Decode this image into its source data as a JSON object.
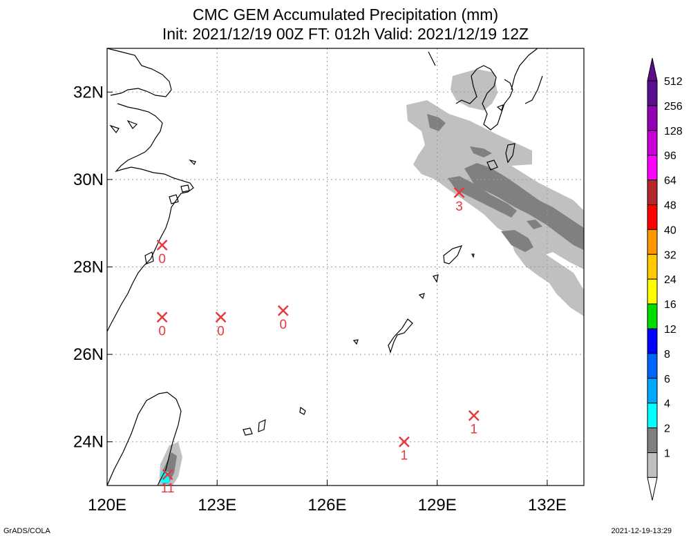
{
  "title": {
    "line1": "CMC GEM Accumulated Precipitation (mm)",
    "line2": "Init: 2021/12/19 00Z  FT: 012h  Valid: 2021/12/19 12Z"
  },
  "axes": {
    "lon_ticks": [
      "120E",
      "123E",
      "126E",
      "129E",
      "132E"
    ],
    "lat_ticks": [
      "32N",
      "30N",
      "28N",
      "26N",
      "24N"
    ],
    "lon_range": [
      120,
      133
    ],
    "lat_range": [
      23,
      33
    ],
    "grid": "dotted"
  },
  "colorbar": {
    "labels": [
      "512",
      "256",
      "128",
      "96",
      "64",
      "48",
      "40",
      "32",
      "24",
      "16",
      "12",
      "8",
      "6",
      "4",
      "2",
      "1"
    ],
    "colors": [
      "#5c0f8c",
      "#9400b4",
      "#c800d2",
      "#ff00ff",
      "#b4282d",
      "#ff0000",
      "#ff9600",
      "#ffc800",
      "#ffff00",
      "#00dc00",
      "#0000ff",
      "#0064ff",
      "#00aaff",
      "#00ffff",
      "#808080",
      "#c0c0c0"
    ]
  },
  "stations": [
    {
      "lon": 121.5,
      "lat": 28.5,
      "value": "0"
    },
    {
      "lon": 121.5,
      "lat": 26.85,
      "value": "0"
    },
    {
      "lon": 123.1,
      "lat": 26.85,
      "value": "0"
    },
    {
      "lon": 124.8,
      "lat": 27.0,
      "value": "0"
    },
    {
      "lon": 129.6,
      "lat": 29.7,
      "value": "3"
    },
    {
      "lon": 128.1,
      "lat": 24.0,
      "value": "1"
    },
    {
      "lon": 130.0,
      "lat": 24.6,
      "value": "1"
    },
    {
      "lon": 121.65,
      "lat": 23.25,
      "value": "11"
    }
  ],
  "footer": {
    "left": "GrADS/COLA",
    "right": "2021-12-19-13:29"
  }
}
